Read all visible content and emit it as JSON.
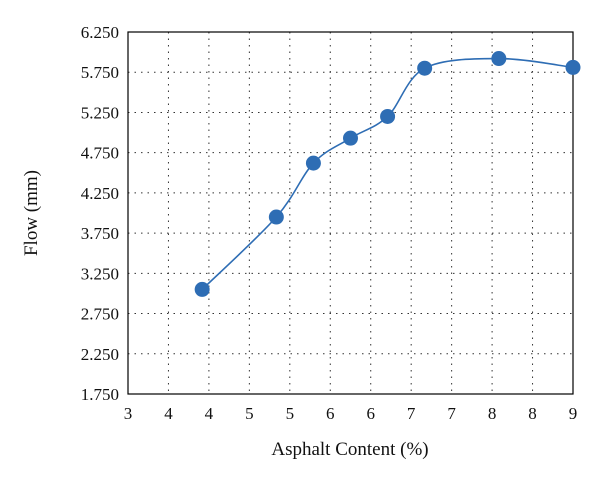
{
  "chart_data": {
    "type": "scatter",
    "title": "",
    "xlabel": "Asphalt Content (%)",
    "ylabel": "Flow (mm)",
    "xlim": [
      3,
      9
    ],
    "ylim": [
      1.75,
      6.25
    ],
    "x_ticks": [
      "3",
      "4",
      "4",
      "5",
      "5",
      "6",
      "6",
      "7",
      "7",
      "8",
      "8",
      "9"
    ],
    "y_ticks": [
      "1.750",
      "2.250",
      "2.750",
      "3.250",
      "3.750",
      "4.250",
      "4.750",
      "5.250",
      "5.750",
      "6.250"
    ],
    "grid": true,
    "legend": "none",
    "smooth_line": true,
    "series": [
      {
        "x": [
          4,
          5,
          5.5,
          6,
          6.5,
          7,
          8,
          9
        ],
        "y": [
          3.05,
          3.95,
          4.62,
          4.93,
          5.2,
          5.8,
          5.92,
          5.81
        ],
        "color": "#2e6db4"
      }
    ]
  }
}
